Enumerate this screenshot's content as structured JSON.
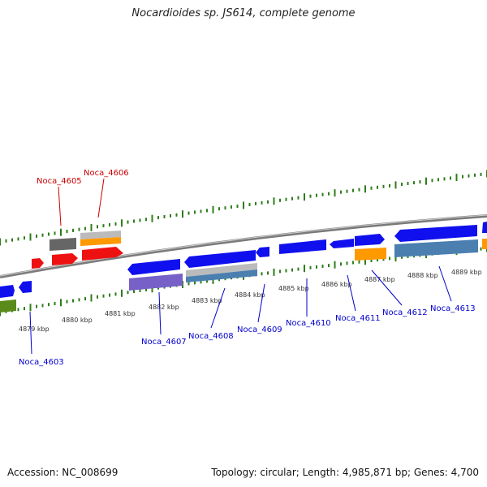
{
  "title": "Nocardioides sp. JS614, complete genome",
  "footer": {
    "accession": "Accession: NC_008699",
    "topology": "Topology: circular; Length: 4,985,871 bp; Genes: 4,700"
  },
  "kbp_ticks": [
    "4879 kbp",
    "4880 kbp",
    "4881 kbp",
    "4882 kbp",
    "4883 kbp",
    "4884 kbp",
    "4885 kbp",
    "4886 kbp",
    "4887 kbp",
    "4888 kbp",
    "4889 kbp"
  ],
  "gene_labels": [
    {
      "text": "Noca_4605",
      "strand": "forward"
    },
    {
      "text": "Noca_4606",
      "strand": "forward"
    },
    {
      "text": "Noca_4603",
      "strand": "reverse"
    },
    {
      "text": "Noca_4607",
      "strand": "reverse"
    },
    {
      "text": "Noca_4608",
      "strand": "reverse"
    },
    {
      "text": "Noca_4609",
      "strand": "reverse"
    },
    {
      "text": "Noca_4610",
      "strand": "reverse"
    },
    {
      "text": "Noca_4611",
      "strand": "reverse"
    },
    {
      "text": "Noca_4612",
      "strand": "reverse"
    },
    {
      "text": "Noca_4613",
      "strand": "reverse"
    }
  ],
  "colors": {
    "forward_label": "#cc0000",
    "reverse_label": "#0000cc",
    "tick": "#2e7d1a",
    "backbone": "#888888",
    "cds_blue": "#1010ee",
    "cds_red": "#ee1111",
    "cds_gray": "#666666",
    "light_gray": "#bbbbbb",
    "orange": "#ff9900",
    "steel_blue": "#4a7fb0",
    "purple": "#7760c8",
    "olive": "#5a8a1a"
  }
}
